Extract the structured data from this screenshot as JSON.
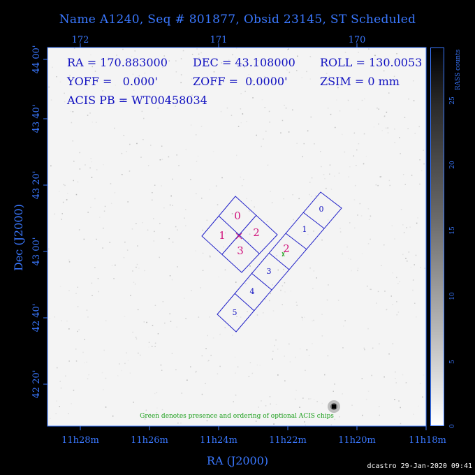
{
  "title": "Name A1240, Seq # 801877, Obsid 23145, ST Scheduled",
  "top_ticks": [
    "172",
    "171",
    "170"
  ],
  "bottom_ticks": [
    "11h28m",
    "11h26m",
    "11h24m",
    "11h22m",
    "11h20m",
    "11h18m"
  ],
  "left_ticks": [
    "44 00'",
    "43 40'",
    "43 20'",
    "43 00'",
    "42 40'",
    "42 20'"
  ],
  "x_axis_label": "RA (J2000)",
  "y_axis_label": "Dec (J2000)",
  "info": {
    "ra": "RA = 170.883000",
    "dec": "DEC = 43.108000",
    "roll": "ROLL = 130.0053",
    "yoff": "YOFF =   0.000'",
    "zoff": "ZOFF =  0.0000'",
    "zsim": "ZSIM = 0 mm",
    "acis_pb": "ACIS PB = WT00458034"
  },
  "chip_labels_i": [
    "0",
    "1",
    "2",
    "3"
  ],
  "chip_labels_s": [
    "0",
    "1",
    "2",
    "3",
    "4",
    "5"
  ],
  "note": "Green denotes presence and ordering of optional ACIS chips",
  "colorbar": {
    "label": "RASS counts",
    "ticks": [
      "0",
      "5",
      "10",
      "15",
      "20",
      "25"
    ]
  },
  "footer": "dcastro 29-Jan-2020 09:41",
  "colors": {
    "axis": "#3a78ff",
    "chip_outline": "#2020c8",
    "chip_i_label": "#d0107a",
    "note": "#1a9e1a"
  }
}
